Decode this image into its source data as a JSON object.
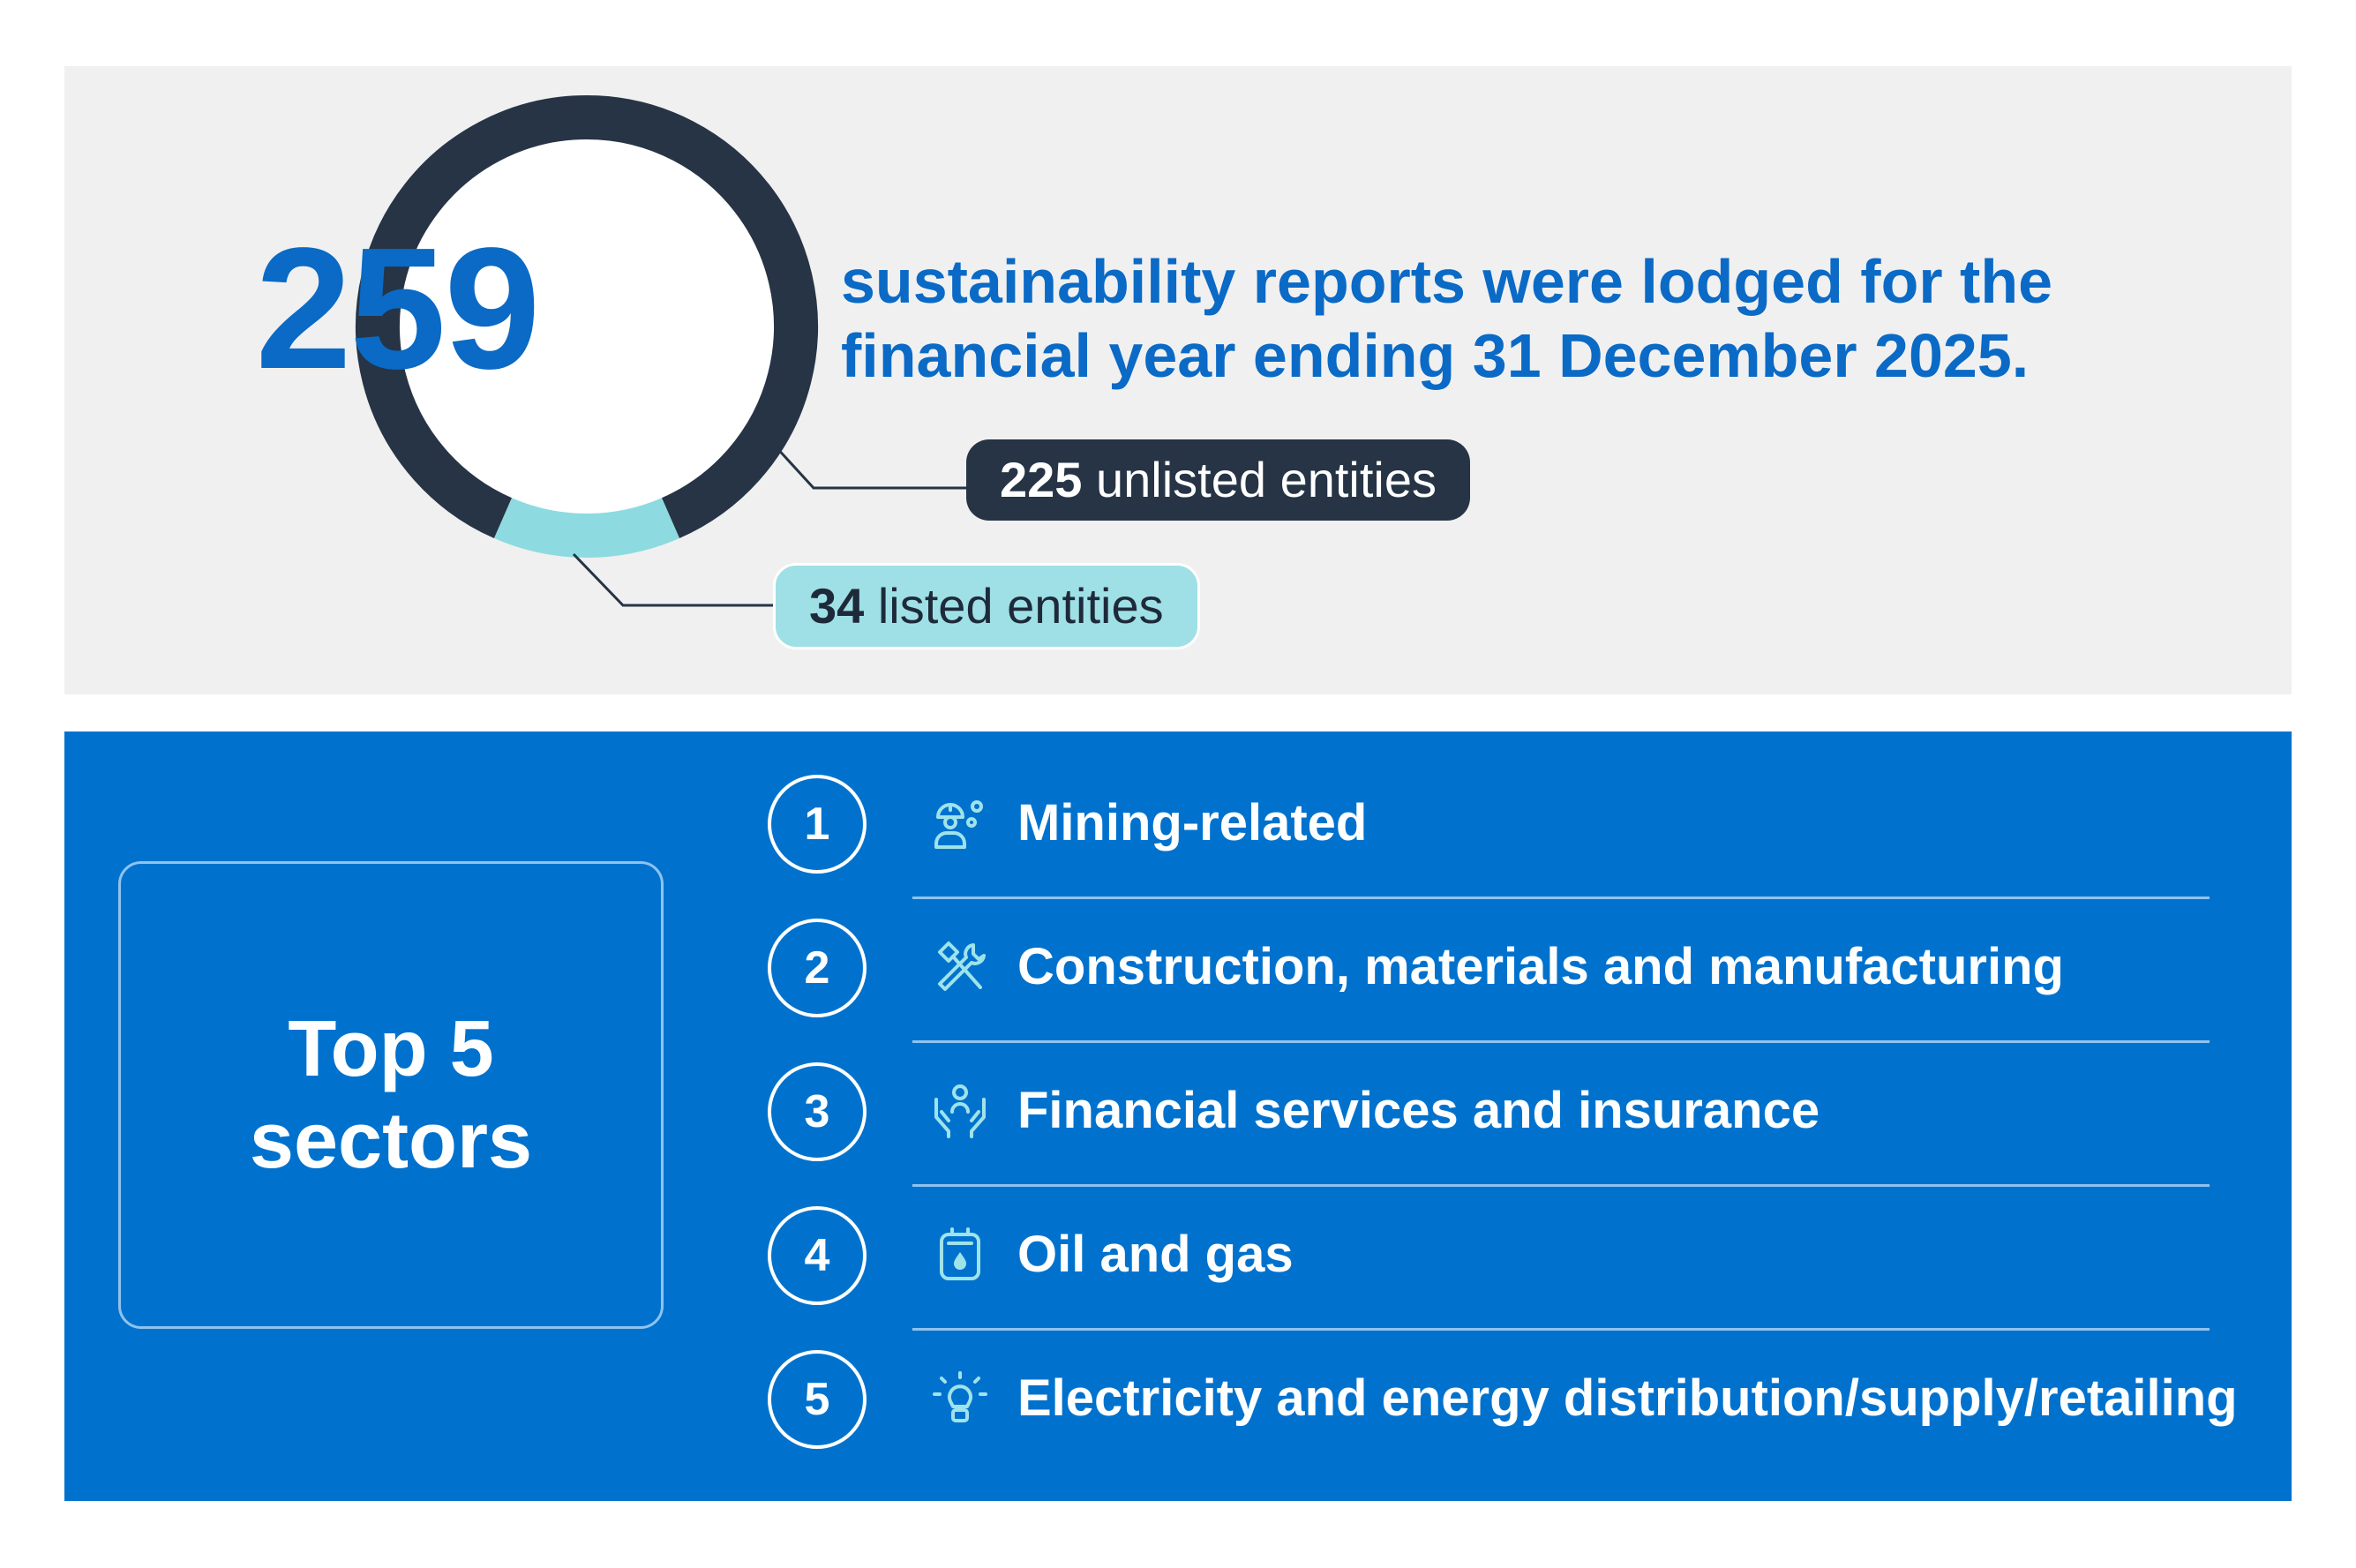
{
  "chart_data": {
    "type": "pie",
    "title": "259",
    "subtitle": "sustainability reports were lodged for the financial year ending 31 December 2025.",
    "total": 259,
    "slices": [
      {
        "label": "unlisted entities",
        "value": 225,
        "color": "#263445"
      },
      {
        "label": "listed entities",
        "value": 34,
        "color": "#8ddbe0"
      }
    ]
  },
  "callouts": {
    "unlisted": {
      "number": "225",
      "label": "unlisted entities"
    },
    "listed": {
      "number": "34",
      "label": "listed entities"
    }
  },
  "sectors": {
    "heading": "Top 5 sectors",
    "items": [
      {
        "rank": "1",
        "label": "Mining-related",
        "icon": "miner-gears-icon"
      },
      {
        "rank": "2",
        "label": "Construction, materials and manufacturing",
        "icon": "hammer-wrench-icon"
      },
      {
        "rank": "3",
        "label": "Financial services and insurance",
        "icon": "hands-person-icon"
      },
      {
        "rank": "4",
        "label": "Oil and gas",
        "icon": "fuel-drop-icon"
      },
      {
        "rank": "5",
        "label": "Electricity and energy distribution/supply/retailing",
        "icon": "light-bulb-icon"
      }
    ]
  },
  "colors": {
    "accent": "#0a6ac6",
    "panel_blue": "#0072ce",
    "dark": "#263445",
    "teal": "#8ddbe0",
    "icon_light": "#9fe3ea"
  }
}
